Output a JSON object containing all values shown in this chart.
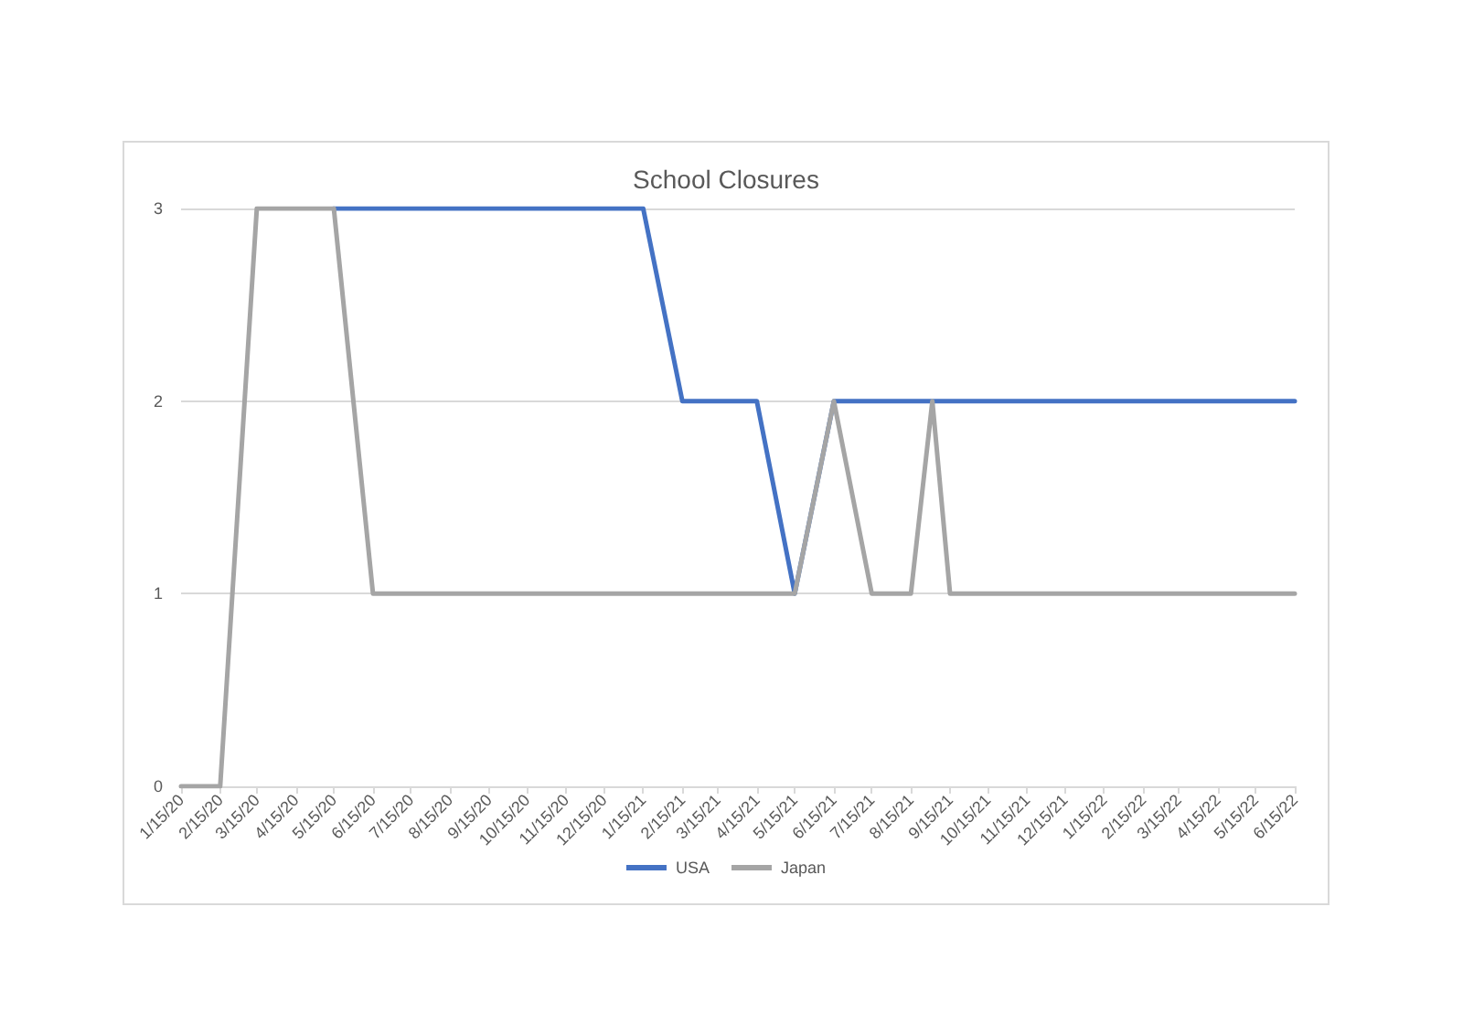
{
  "chart_data": {
    "type": "line",
    "title": "School Closures",
    "x": [
      "2020-01-15",
      "2020-02-15",
      "2020-03-15",
      "2020-04-15",
      "2020-05-15",
      "2020-06-15",
      "2020-07-15",
      "2020-08-15",
      "2020-09-15",
      "2020-10-15",
      "2020-11-15",
      "2020-12-15",
      "2021-01-15",
      "2021-02-15",
      "2021-03-15",
      "2021-04-15",
      "2021-05-15",
      "2021-06-15",
      "2021-07-15",
      "2021-08-15",
      "2021-09-01",
      "2021-09-15",
      "2021-10-15",
      "2021-11-15",
      "2021-12-15",
      "2022-01-15",
      "2022-02-15",
      "2022-03-15",
      "2022-04-15",
      "2022-05-15",
      "2022-06-15"
    ],
    "series": [
      {
        "name": "USA",
        "color": "#4472c4",
        "values": [
          null,
          null,
          null,
          null,
          3,
          3,
          3,
          3,
          3,
          3,
          3,
          3,
          3,
          2,
          2,
          2,
          1,
          2,
          2,
          2,
          2,
          2,
          2,
          2,
          2,
          2,
          2,
          2,
          2,
          2,
          2
        ]
      },
      {
        "name": "Japan",
        "color": "#a5a5a5",
        "values": [
          0,
          0,
          3,
          3,
          3,
          1,
          1,
          1,
          1,
          1,
          1,
          1,
          1,
          1,
          1,
          1,
          1,
          2,
          1,
          1,
          2,
          1,
          1,
          1,
          1,
          1,
          1,
          1,
          1,
          1,
          1
        ]
      }
    ],
    "xlim": [
      "2020-01-15",
      "2022-06-15"
    ],
    "xticks": [
      {
        "value": "2020-01-15",
        "label": "1/15/20"
      },
      {
        "value": "2020-02-15",
        "label": "2/15/20"
      },
      {
        "value": "2020-03-15",
        "label": "3/15/20"
      },
      {
        "value": "2020-04-15",
        "label": "4/15/20"
      },
      {
        "value": "2020-05-15",
        "label": "5/15/20"
      },
      {
        "value": "2020-06-15",
        "label": "6/15/20"
      },
      {
        "value": "2020-07-15",
        "label": "7/15/20"
      },
      {
        "value": "2020-08-15",
        "label": "8/15/20"
      },
      {
        "value": "2020-09-15",
        "label": "9/15/20"
      },
      {
        "value": "2020-10-15",
        "label": "10/15/20"
      },
      {
        "value": "2020-11-15",
        "label": "11/15/20"
      },
      {
        "value": "2020-12-15",
        "label": "12/15/20"
      },
      {
        "value": "2021-01-15",
        "label": "1/15/21"
      },
      {
        "value": "2021-02-15",
        "label": "2/15/21"
      },
      {
        "value": "2021-03-15",
        "label": "3/15/21"
      },
      {
        "value": "2021-04-15",
        "label": "4/15/21"
      },
      {
        "value": "2021-05-15",
        "label": "5/15/21"
      },
      {
        "value": "2021-06-15",
        "label": "6/15/21"
      },
      {
        "value": "2021-07-15",
        "label": "7/15/21"
      },
      {
        "value": "2021-08-15",
        "label": "8/15/21"
      },
      {
        "value": "2021-09-15",
        "label": "9/15/21"
      },
      {
        "value": "2021-10-15",
        "label": "10/15/21"
      },
      {
        "value": "2021-11-15",
        "label": "11/15/21"
      },
      {
        "value": "2021-12-15",
        "label": "12/15/21"
      },
      {
        "value": "2022-01-15",
        "label": "1/15/22"
      },
      {
        "value": "2022-02-15",
        "label": "2/15/22"
      },
      {
        "value": "2022-03-15",
        "label": "3/15/22"
      },
      {
        "value": "2022-04-15",
        "label": "4/15/22"
      },
      {
        "value": "2022-05-15",
        "label": "5/15/22"
      },
      {
        "value": "2022-06-15",
        "label": "6/15/22"
      }
    ],
    "ylim": [
      0,
      3
    ],
    "yticks": [
      0,
      1,
      2,
      3
    ],
    "grid": "y",
    "legend": "bottom"
  }
}
